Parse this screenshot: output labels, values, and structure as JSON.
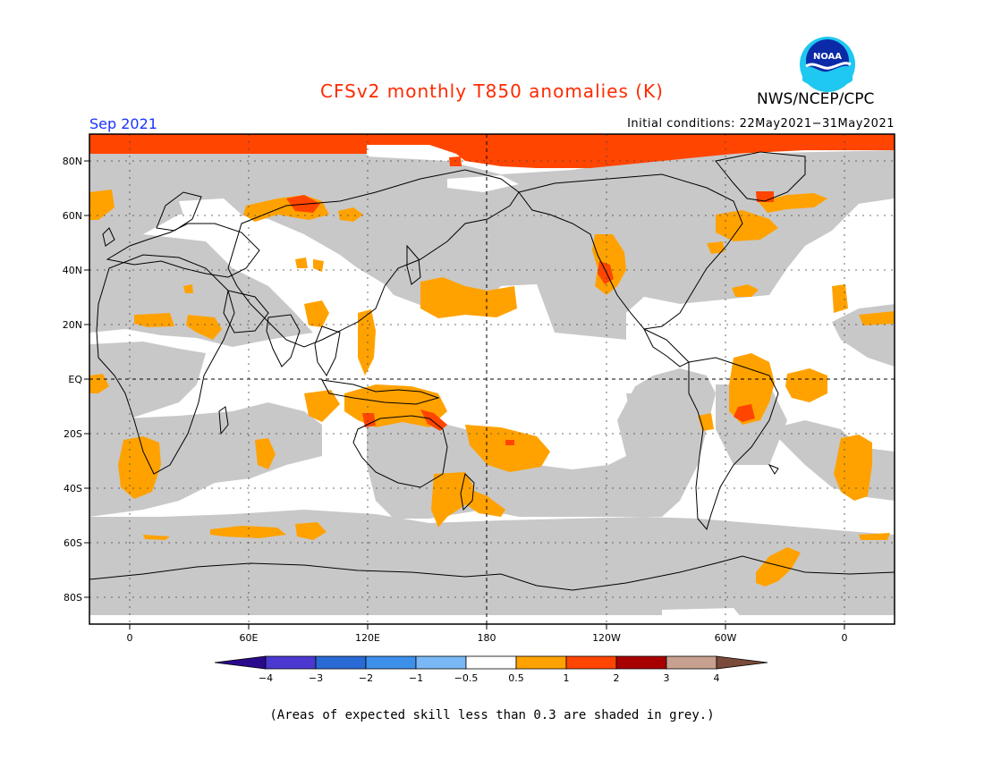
{
  "title": "CFSv2 monthly T850 anomalies (K)",
  "month": "Sep 2021",
  "initial_conditions": "Initial conditions: 22May2021−31May2021",
  "agency": "NWS/NCEP/CPC",
  "logo_text": "NOAA",
  "footnote": "(Areas of expected skill less than 0.3 are shaded in grey.)",
  "lat_labels": [
    "80N",
    "60N",
    "40N",
    "20N",
    "EQ",
    "20S",
    "40S",
    "60S",
    "80S"
  ],
  "lon_labels": [
    "0",
    "60E",
    "120E",
    "180",
    "120W",
    "60W",
    "0"
  ],
  "colorbar": {
    "tick_labels": [
      "−4",
      "−3",
      "−2",
      "−1",
      "−0.5",
      "0.5",
      "1",
      "2",
      "3",
      "4"
    ],
    "colors": [
      "#2a0a8c",
      "#4b38d0",
      "#2a6ad6",
      "#3d90ea",
      "#7ab8f5",
      "#ffffff",
      "#ffa200",
      "#ff4500",
      "#a80000",
      "#c8a090",
      "#7a4a3a"
    ]
  },
  "colors": {
    "skill_grey": "#c8c8c8",
    "anomaly_05_1": "#ffa200",
    "anomaly_1_2": "#ff4500",
    "title": "#ff2a00",
    "month": "#1a33ff"
  }
}
